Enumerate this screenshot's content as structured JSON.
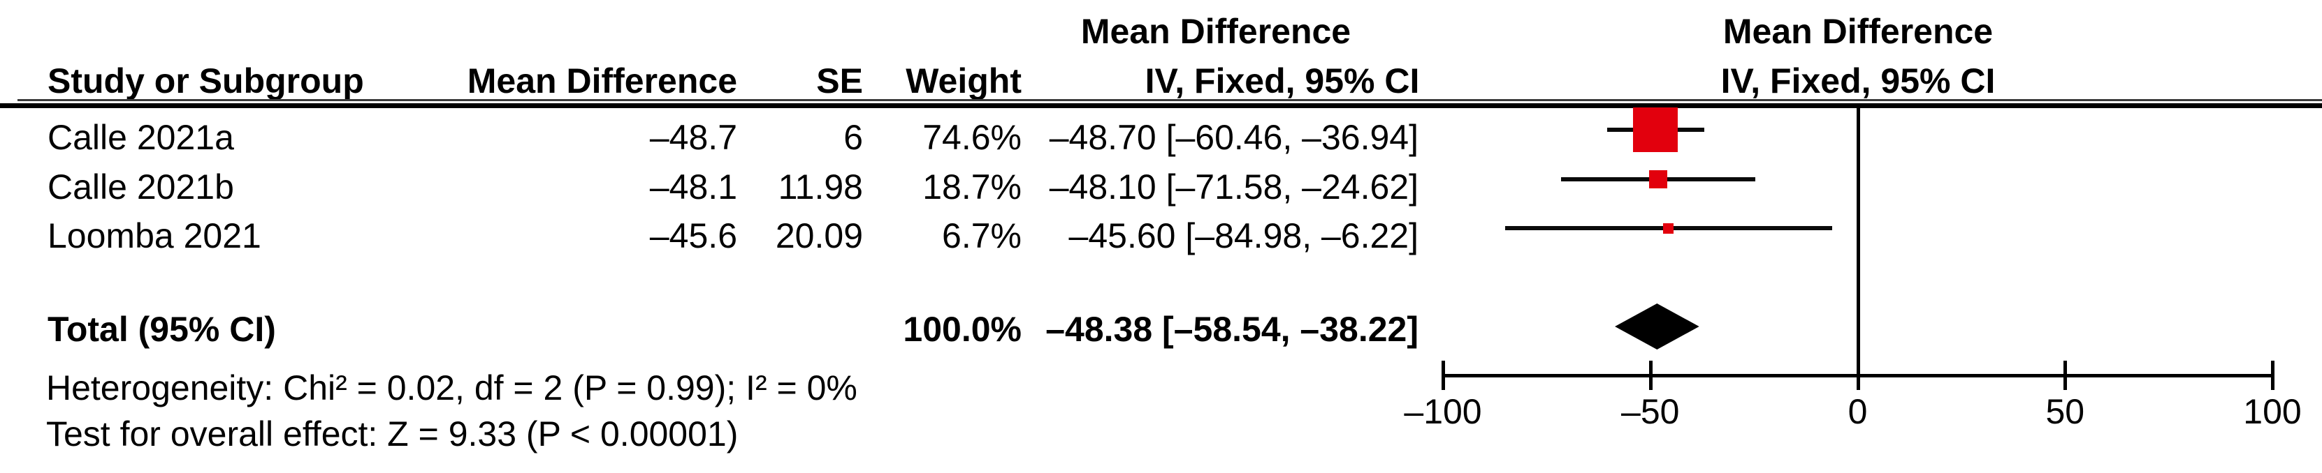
{
  "table": {
    "headers": {
      "study": "Study or Subgroup",
      "mean_difference": "Mean Difference",
      "se": "SE",
      "weight": "Weight",
      "ci_col_line1": "Mean Difference",
      "ci_col_line2": "IV, Fixed, 95% CI",
      "plot_col_line1": "Mean Difference",
      "plot_col_line2": "IV, Fixed, 95% CI"
    },
    "rows": [
      {
        "study": "Calle 2021a",
        "md": "–48.7",
        "se": "6",
        "weight": "74.6%",
        "ci": "–48.70 [–60.46, –36.94]"
      },
      {
        "study": "Calle 2021b",
        "md": "–48.1",
        "se": "11.98",
        "weight": "18.7%",
        "ci": "–48.10 [–71.58, –24.62]"
      },
      {
        "study": "Loomba 2021",
        "md": "–45.6",
        "se": "20.09",
        "weight": "6.7%",
        "ci": "–45.60 [–84.98, –6.22]"
      }
    ],
    "total": {
      "label": "Total (95% CI)",
      "weight": "100.0%",
      "ci": "–48.38 [–58.54, –38.22]"
    },
    "footnotes": {
      "heterogeneity": "Heterogeneity: Chi² = 0.02, df = 2 (P = 0.99); I² = 0%",
      "overall_effect": "Test for overall effect: Z = 9.33 (P < 0.00001)"
    }
  },
  "chart_data": {
    "type": "forest",
    "effect_measure": "Mean Difference",
    "model": "IV, Fixed, 95% CI",
    "x_axis": {
      "min": -100,
      "max": 100,
      "ticks": [
        -100,
        -50,
        0,
        50,
        100
      ],
      "tick_labels": [
        "–100",
        "–50",
        "0",
        "50",
        "100"
      ],
      "zero_line": 0
    },
    "studies": [
      {
        "name": "Calle 2021a",
        "md": -48.7,
        "ci_low": -60.46,
        "ci_high": -36.94,
        "weight_pct": 74.6
      },
      {
        "name": "Calle 2021b",
        "md": -48.1,
        "ci_low": -71.58,
        "ci_high": -24.62,
        "weight_pct": 18.7
      },
      {
        "name": "Loomba 2021",
        "md": -45.6,
        "ci_low": -84.98,
        "ci_high": -6.22,
        "weight_pct": 6.7
      }
    ],
    "total": {
      "md": -48.38,
      "ci_low": -58.54,
      "ci_high": -38.22,
      "weight_pct": 100.0
    },
    "heterogeneity": {
      "chi2": 0.02,
      "df": 2,
      "p": 0.99,
      "i2_pct": 0
    },
    "overall_effect": {
      "z": 9.33,
      "p": "< 0.00001"
    },
    "marker_color": "#E2000D",
    "diamond_color": "#000000",
    "line_color": "#0a0a0a"
  }
}
